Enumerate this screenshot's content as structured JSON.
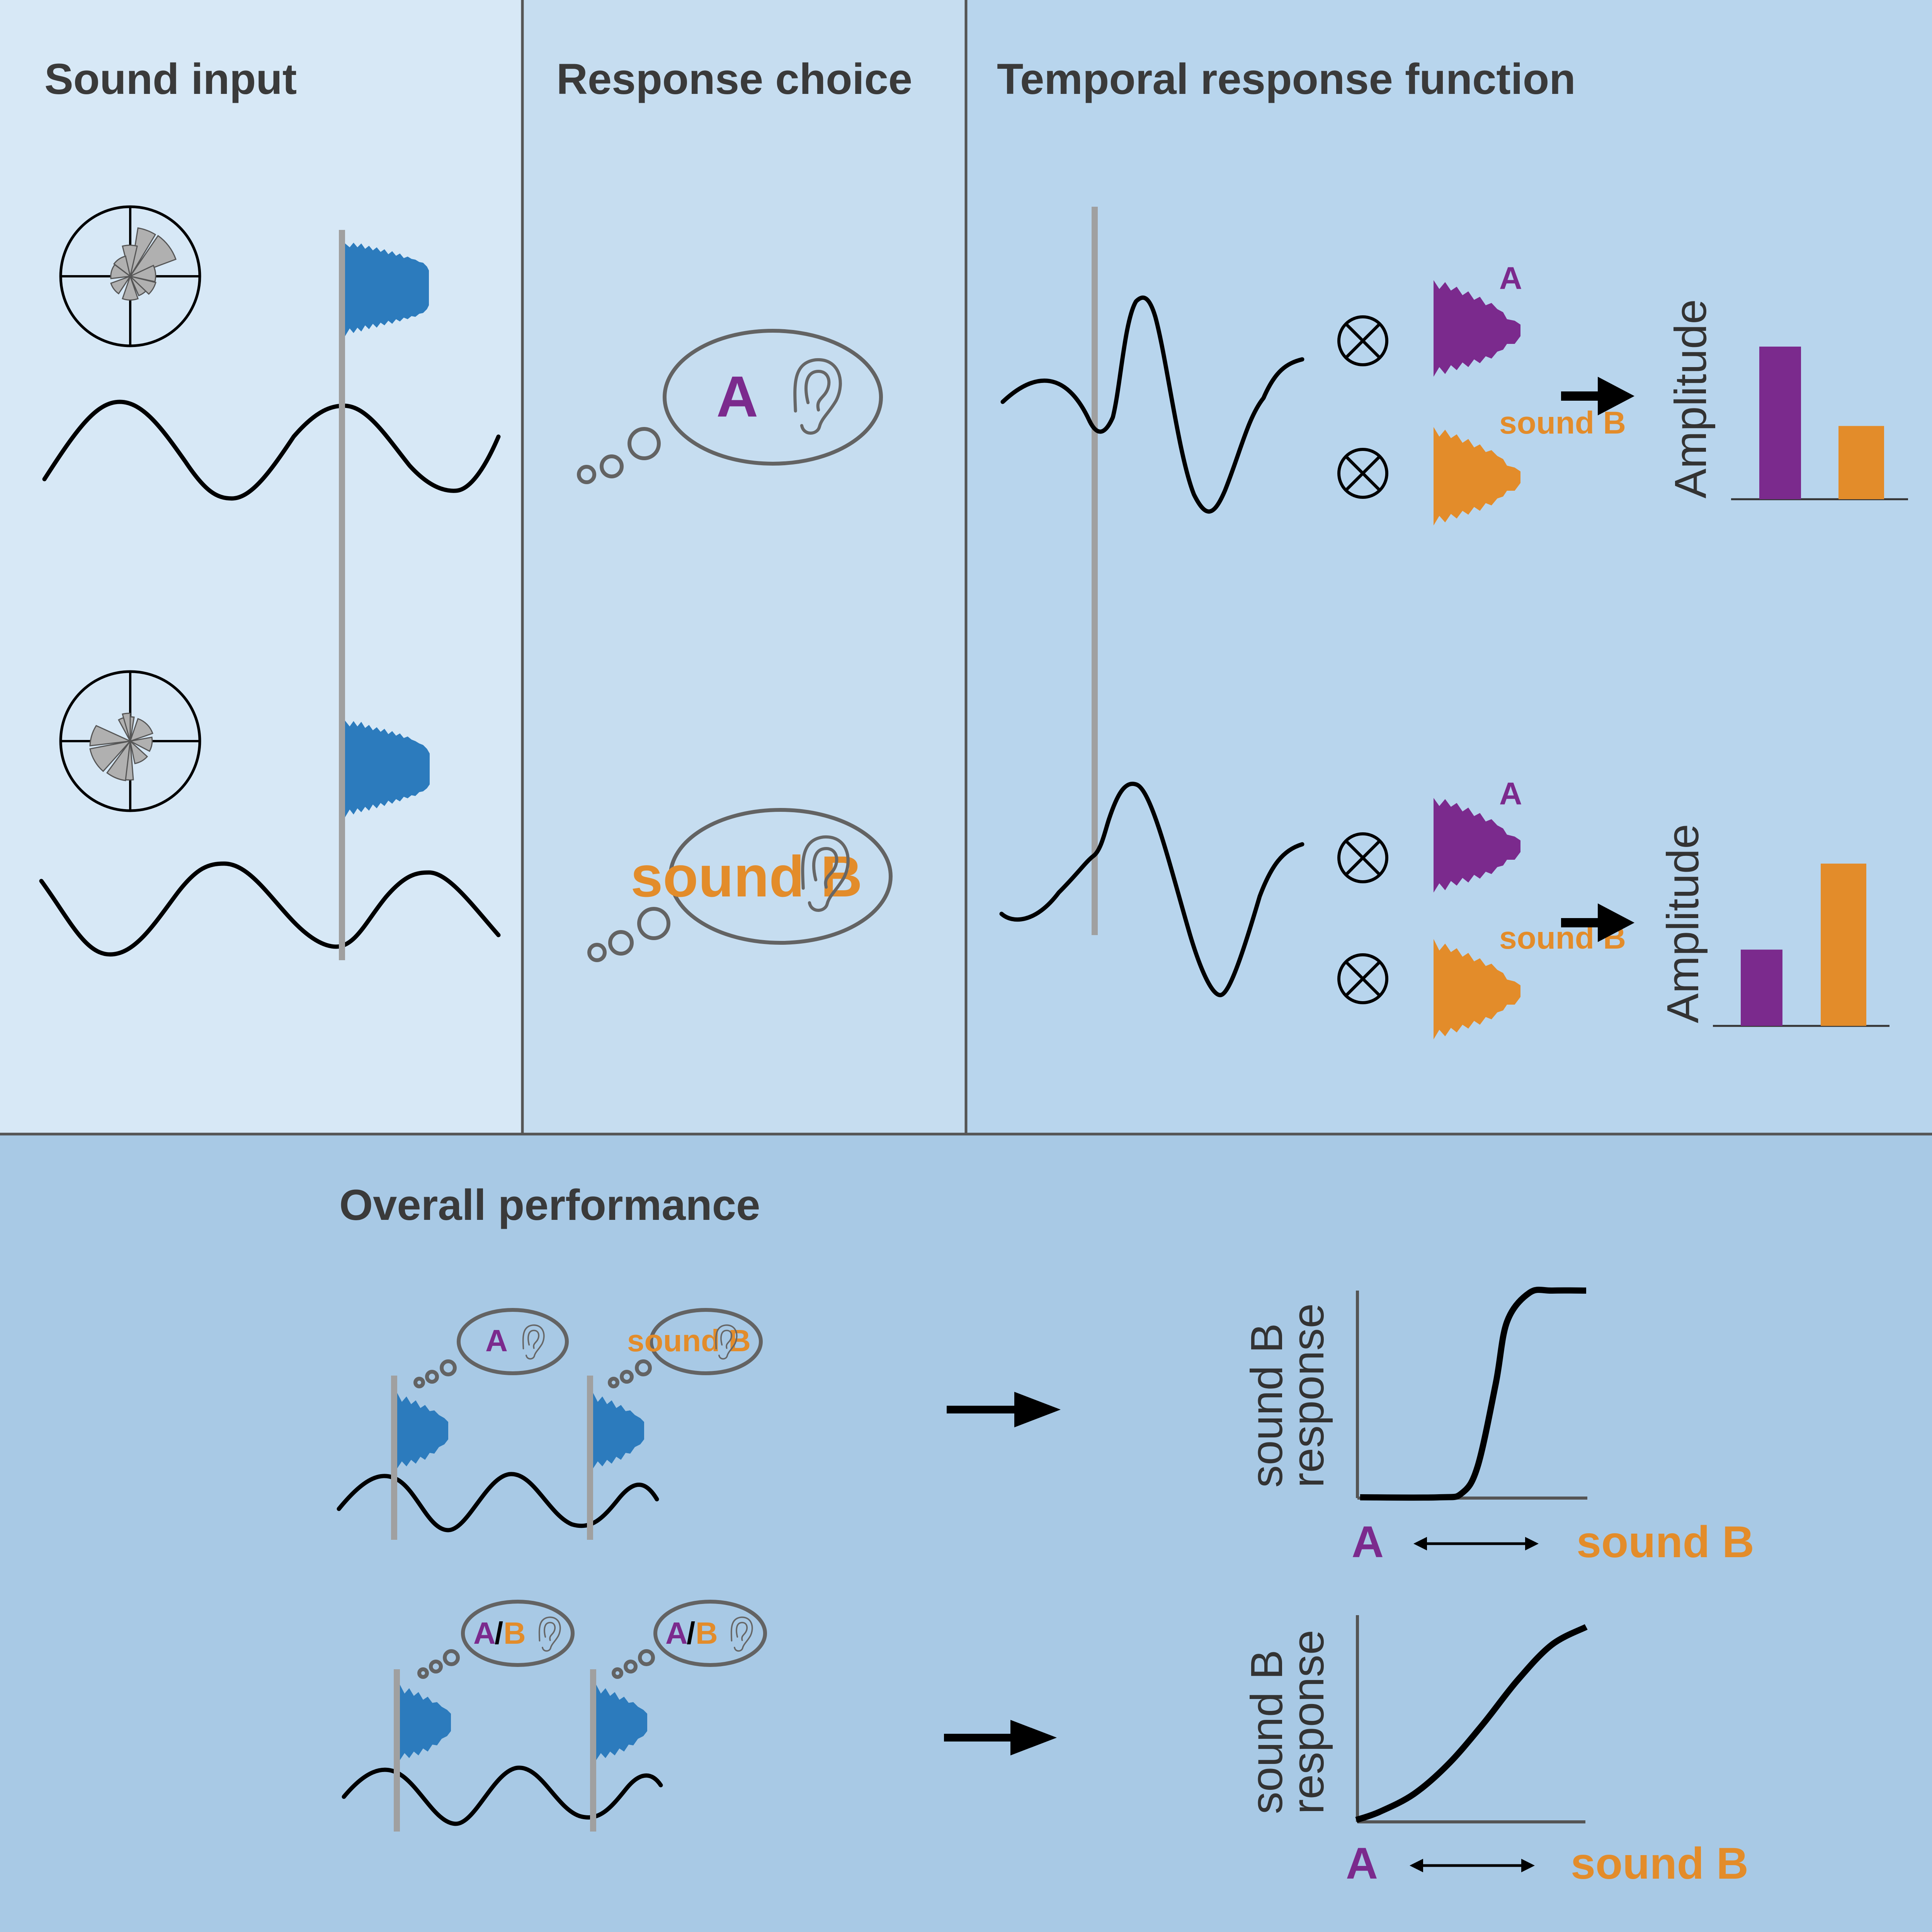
{
  "panels": {
    "sound_input": {
      "title": "Sound input"
    },
    "response_choice": {
      "title": "Response choice"
    },
    "trf": {
      "title": "Temporal response function"
    },
    "overall": {
      "title": "Overall performance"
    }
  },
  "labels": {
    "sound_a": "A",
    "sound_b": "sound B",
    "ambiguous_a": "A",
    "ambiguous_slash": "/",
    "ambiguous_b": "B",
    "amplitude": "Amplitude",
    "response": "response"
  },
  "colors": {
    "sound_a": "#7b2a8d",
    "sound_b": "#e38c2a",
    "waveform": "#2c7bbd",
    "marker": "#a0a0a0",
    "panel_1": "#d7e8f6",
    "panel_2": "#c6ddf0",
    "panel_3": "#b8d5ed",
    "panel_bottom": "#a8c9e5"
  },
  "chart_data": [
    {
      "type": "bar",
      "categories": [
        "A",
        "B"
      ],
      "values": [
        1.0,
        0.48
      ],
      "ylabel": "Amplitude"
    },
    {
      "type": "bar",
      "categories": [
        "A",
        "B"
      ],
      "values": [
        0.47,
        1.0
      ],
      "ylabel": "Amplitude"
    },
    {
      "type": "line",
      "x": [
        0,
        0.35,
        0.45,
        0.52,
        0.6,
        0.65,
        0.75,
        0.85,
        1.0
      ],
      "series": [
        {
          "values": [
            0,
            0,
            0.02,
            0.15,
            0.55,
            0.85,
            0.99,
            1,
            1
          ]
        }
      ],
      "xlabel": "A ⟷ B",
      "ylabel": "sound B response"
    },
    {
      "type": "line",
      "x": [
        0,
        0.1,
        0.25,
        0.4,
        0.55,
        0.7,
        0.85,
        1.0
      ],
      "series": [
        {
          "values": [
            0,
            0.04,
            0.13,
            0.28,
            0.48,
            0.7,
            0.88,
            0.97
          ]
        }
      ],
      "xlabel": "A ⟷ B",
      "ylabel": "sound B response"
    }
  ]
}
